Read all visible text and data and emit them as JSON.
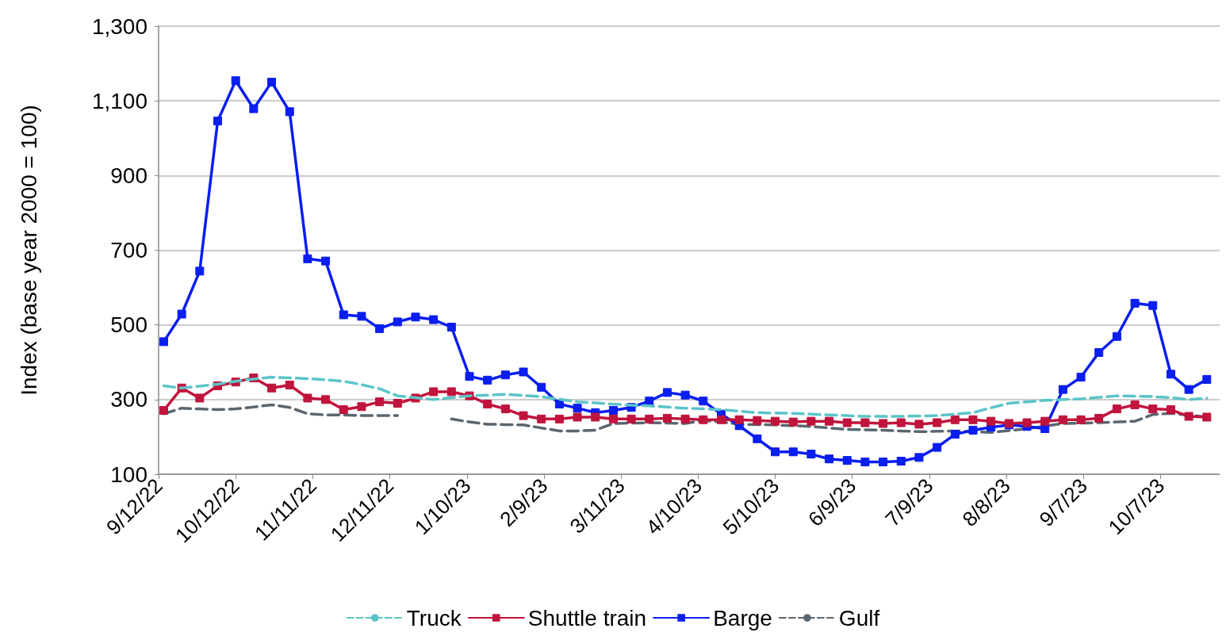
{
  "chart_data": {
    "type": "line",
    "ylabel": "Index (base year 2000 = 100)",
    "x": [
      "2022-09-14",
      "2022-09-21",
      "2022-09-28",
      "2022-10-05",
      "2022-10-12",
      "2022-10-19",
      "2022-10-26",
      "2022-11-02",
      "2022-11-09",
      "2022-11-16",
      "2022-11-23",
      "2022-11-30",
      "2022-12-07",
      "2022-12-14",
      "2022-12-21",
      "2022-12-28",
      "2023-01-04",
      "2023-01-11",
      "2023-01-18",
      "2023-01-25",
      "2023-02-01",
      "2023-02-08",
      "2023-02-15",
      "2023-02-22",
      "2023-03-01",
      "2023-03-08",
      "2023-03-15",
      "2023-03-22",
      "2023-03-29",
      "2023-04-05",
      "2023-04-12",
      "2023-04-19",
      "2023-04-26",
      "2023-05-03",
      "2023-05-10",
      "2023-05-17",
      "2023-05-24",
      "2023-05-31",
      "2023-06-07",
      "2023-06-14",
      "2023-06-21",
      "2023-06-28",
      "2023-07-05",
      "2023-07-12",
      "2023-07-19",
      "2023-07-26",
      "2023-08-02",
      "2023-08-09",
      "2023-08-16",
      "2023-08-23",
      "2023-08-30",
      "2023-09-06",
      "2023-09-13",
      "2023-09-20",
      "2023-09-27",
      "2023-10-04",
      "2023-10-11",
      "2023-10-18",
      "2023-10-25"
    ],
    "series": [
      {
        "name": "Truck",
        "color": "#5bc4c8",
        "line_style": "dashed",
        "marker": "none",
        "values": [
          337,
          331,
          336,
          341,
          349,
          355,
          360,
          358,
          356,
          353,
          349,
          340,
          329,
          310,
          305,
          300,
          305,
          310,
          312,
          314,
          311,
          308,
          301,
          294,
          291,
          288,
          285,
          283,
          280,
          277,
          275,
          273,
          269,
          265,
          264,
          263,
          261,
          259,
          257,
          255,
          255,
          255,
          256,
          257,
          261,
          265,
          278,
          290,
          294,
          298,
          300,
          302,
          306,
          310,
          309,
          308,
          305,
          300,
          304
        ]
      },
      {
        "name": "Shuttle train",
        "color": "#c0143c",
        "line_style": "solid",
        "marker": "square",
        "values": [
          271,
          331,
          304,
          337,
          347,
          358,
          331,
          339,
          304,
          300,
          273,
          281,
          294,
          290,
          304,
          321,
          321,
          310,
          288,
          275,
          257,
          248,
          248,
          253,
          253,
          248,
          248,
          248,
          250,
          248,
          246,
          246,
          246,
          244,
          242,
          240,
          242,
          242,
          238,
          238,
          236,
          238,
          234,
          238,
          246,
          246,
          242,
          236,
          238,
          242,
          246,
          246,
          250,
          275,
          286,
          275,
          273,
          255,
          253
        ]
      },
      {
        "name": "Barge",
        "color": "#0a1ef0",
        "line_style": "solid",
        "marker": "square",
        "values": [
          455,
          529,
          644,
          1046,
          1154,
          1079,
          1150,
          1071,
          677,
          671,
          527,
          523,
          490,
          508,
          521,
          514,
          494,
          362,
          352,
          366,
          374,
          333,
          288,
          277,
          265,
          271,
          279,
          296,
          319,
          312,
          296,
          261,
          230,
          195,
          160,
          160,
          154,
          141,
          137,
          133,
          133,
          135,
          145,
          172,
          207,
          218,
          226,
          232,
          228,
          222,
          327,
          360,
          426,
          469,
          558,
          552,
          368,
          327,
          354
        ]
      },
      {
        "name": "Gulf",
        "color": "#5a6670",
        "line_style": "dashed",
        "marker": "none",
        "values": [
          262,
          277,
          275,
          273,
          275,
          280,
          286,
          279,
          262,
          259,
          259,
          257,
          257,
          257,
          null,
          null,
          248,
          240,
          234,
          233,
          232,
          224,
          216,
          216,
          218,
          236,
          237,
          238,
          237,
          236,
          244,
          240,
          234,
          233,
          232,
          230,
          228,
          224,
          220,
          219,
          218,
          216,
          214,
          215,
          216,
          214,
          212,
          217,
          222,
          229,
          236,
          237,
          238,
          240,
          242,
          260,
          263,
          259,
          253
        ]
      }
    ],
    "xlim": [
      "2022-09-12",
      "2023-10-30"
    ],
    "xticks": [
      {
        "value": "2022-09-12",
        "label": "9/12/22"
      },
      {
        "value": "2022-10-12",
        "label": "10/12/22"
      },
      {
        "value": "2022-11-11",
        "label": "11/11/22"
      },
      {
        "value": "2022-12-11",
        "label": "12/11/22"
      },
      {
        "value": "2023-01-10",
        "label": "1/10/23"
      },
      {
        "value": "2023-02-09",
        "label": "2/9/23"
      },
      {
        "value": "2023-03-11",
        "label": "3/11/23"
      },
      {
        "value": "2023-04-10",
        "label": "4/10/23"
      },
      {
        "value": "2023-05-10",
        "label": "5/10/23"
      },
      {
        "value": "2023-06-09",
        "label": "6/9/23"
      },
      {
        "value": "2023-07-09",
        "label": "7/9/23"
      },
      {
        "value": "2023-08-08",
        "label": "8/8/23"
      },
      {
        "value": "2023-09-07",
        "label": "9/7/23"
      },
      {
        "value": "2023-10-07",
        "label": "10/7/23"
      }
    ],
    "ylim": [
      100,
      1300
    ],
    "yticks": [
      100,
      300,
      500,
      700,
      900,
      {
        "value": 1100,
        "label": "1,100"
      },
      {
        "value": 1300,
        "label": "1,300"
      }
    ],
    "grid": "y",
    "legend": "bottom"
  }
}
